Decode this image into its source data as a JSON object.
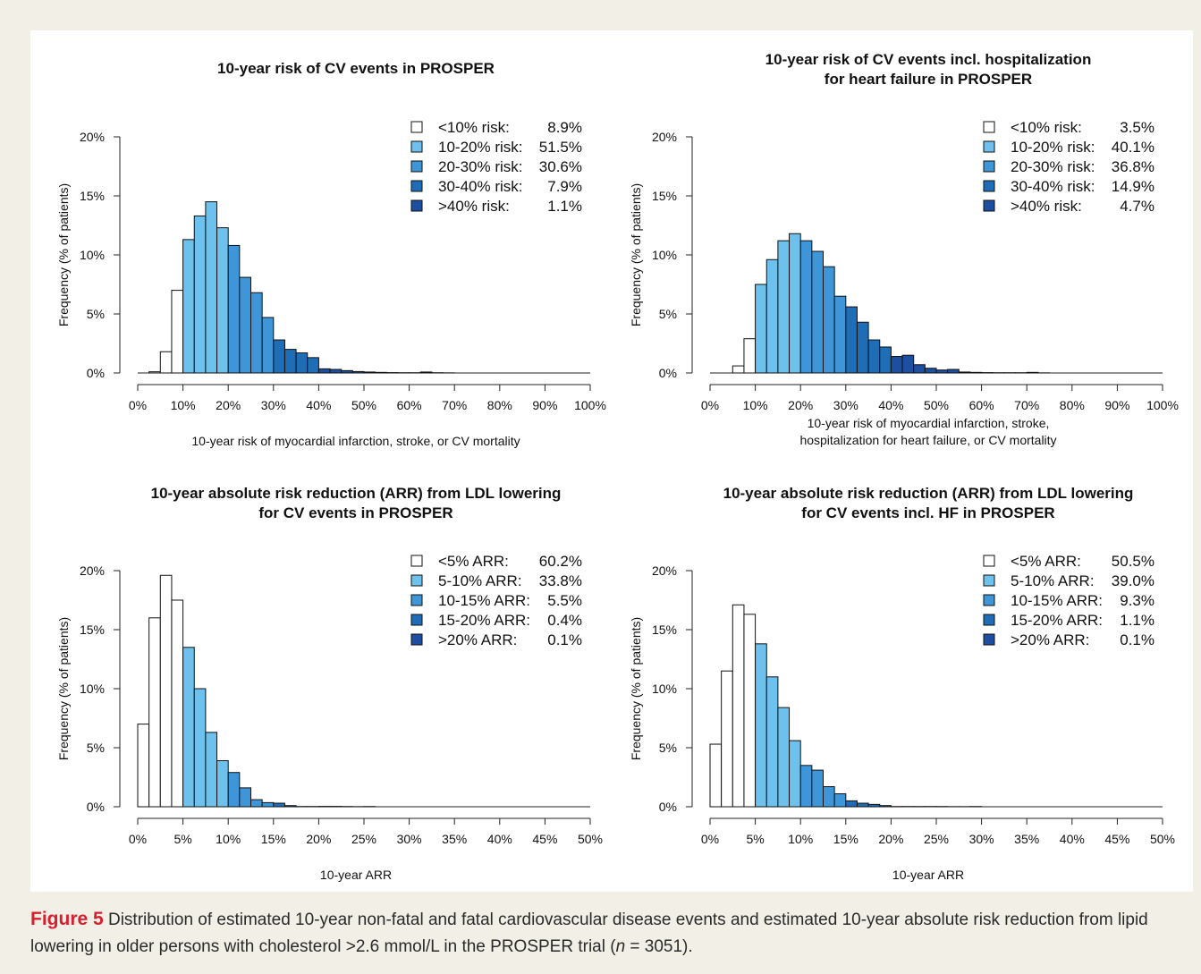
{
  "colors": {
    "white": "#ffffff",
    "light_blue": "#6ec1ec",
    "mid_blue": "#3e96d8",
    "dark_blue": "#1f6db7",
    "navy": "#1c4fa0",
    "caption_label": "#d6202f"
  },
  "caption": {
    "label": "Figure 5",
    "text_before_n": "Distribution of estimated 10-year non-fatal and fatal cardiovascular disease events and estimated 10-year absolute risk reduction from lipid lowering in older persons with cholesterol >2.6 mmol/L in the PROSPER trial (",
    "n_symbol": "n",
    "text_after_n": " = 3051)."
  },
  "chart_data": [
    {
      "type": "bar",
      "title": "10-year risk of CV events in PROSPER",
      "xlabel": "10-year risk of myocardial infarction, stroke, or CV mortality",
      "ylabel": "Frequency (% of patients)",
      "bin_width": 2.5,
      "xlim": [
        0,
        100
      ],
      "ylim": [
        0,
        20
      ],
      "x_ticks": [
        "0%",
        "10%",
        "20%",
        "30%",
        "40%",
        "50%",
        "60%",
        "70%",
        "80%",
        "90%",
        "100%"
      ],
      "y_ticks": [
        "0%",
        "5%",
        "10%",
        "15%",
        "20%"
      ],
      "legend_position": "top-right",
      "legend": [
        {
          "label": "<10% risk:",
          "value": "8.9%"
        },
        {
          "label": "10-20% risk:",
          "value": "51.5%"
        },
        {
          "label": "20-30% risk:",
          "value": "30.6%"
        },
        {
          "label": "30-40% risk:",
          "value": "7.9%"
        },
        {
          "label": ">40% risk:",
          "value": "1.1%"
        }
      ],
      "group_edges": [
        10,
        20,
        30,
        40
      ],
      "values": [
        0,
        0.1,
        1.8,
        7.0,
        11.3,
        13.3,
        14.5,
        12.3,
        10.8,
        8.1,
        6.8,
        4.7,
        2.8,
        2.0,
        1.7,
        1.3,
        0.35,
        0.3,
        0.2,
        0.12,
        0.08,
        0.05,
        0.03,
        0.02,
        0.02,
        0.08,
        0.02,
        0.01
      ]
    },
    {
      "type": "bar",
      "title": "10-year risk of CV events incl. hospitalization for heart failure in PROSPER",
      "title_lines": [
        "10-year risk of CV events incl. hospitalization",
        "for heart failure in PROSPER"
      ],
      "xlabel": "10-year risk of myocardial infarction, stroke, hospitalization for heart failure, or CV mortality",
      "xlabel_lines": [
        "10-year risk of myocardial infarction, stroke,",
        "hospitalization for heart failure, or CV mortality"
      ],
      "ylabel": "Frequency (% of patients)",
      "bin_width": 2.5,
      "xlim": [
        0,
        100
      ],
      "ylim": [
        0,
        20
      ],
      "x_ticks": [
        "0%",
        "10%",
        "20%",
        "30%",
        "40%",
        "50%",
        "60%",
        "70%",
        "80%",
        "90%",
        "100%"
      ],
      "y_ticks": [
        "0%",
        "5%",
        "10%",
        "15%",
        "20%"
      ],
      "legend_position": "top-right",
      "legend": [
        {
          "label": "<10% risk:",
          "value": "3.5%"
        },
        {
          "label": "10-20% risk:",
          "value": "40.1%"
        },
        {
          "label": "20-30% risk:",
          "value": "36.8%"
        },
        {
          "label": "30-40% risk:",
          "value": "14.9%"
        },
        {
          "label": ">40% risk:",
          "value": "4.7%"
        }
      ],
      "group_edges": [
        10,
        20,
        30,
        40
      ],
      "values": [
        0,
        0,
        0.6,
        2.9,
        7.5,
        9.6,
        11.2,
        11.8,
        11.2,
        10.3,
        9.0,
        6.5,
        5.6,
        4.3,
        2.8,
        2.2,
        1.4,
        1.5,
        0.7,
        0.4,
        0.25,
        0.3,
        0.08,
        0.05,
        0.03,
        0.02,
        0.02,
        0.02,
        0.05,
        0.01
      ]
    },
    {
      "type": "bar",
      "title": "10-year absolute risk reduction (ARR) from LDL lowering for CV events in PROSPER",
      "title_lines": [
        "10-year absolute risk reduction (ARR) from LDL lowering",
        "for CV events in PROSPER"
      ],
      "xlabel": "10-year ARR",
      "ylabel": "Frequency (% of patients)",
      "bin_width": 1.25,
      "xlim": [
        0,
        50
      ],
      "ylim": [
        0,
        20
      ],
      "x_ticks": [
        "0%",
        "5%",
        "10%",
        "15%",
        "20%",
        "25%",
        "30%",
        "35%",
        "40%",
        "45%",
        "50%"
      ],
      "y_ticks": [
        "0%",
        "5%",
        "10%",
        "15%",
        "20%"
      ],
      "legend_position": "top-right",
      "legend": [
        {
          "label": "<5% ARR:",
          "value": "60.2%"
        },
        {
          "label": "5-10% ARR:",
          "value": "33.8%"
        },
        {
          "label": "10-15% ARR:",
          "value": "5.5%"
        },
        {
          "label": "15-20% ARR:",
          "value": "0.4%"
        },
        {
          "label": ">20% ARR:",
          "value": "0.1%"
        }
      ],
      "group_edges": [
        5,
        10,
        15,
        20
      ],
      "values": [
        7.0,
        16.0,
        19.6,
        17.5,
        13.5,
        10.0,
        6.3,
        3.9,
        2.9,
        1.6,
        0.6,
        0.35,
        0.3,
        0.1,
        0.02,
        0.02,
        0.03,
        0.03,
        0.02,
        0.01,
        0.02
      ]
    },
    {
      "type": "bar",
      "title": "10-year absolute risk reduction (ARR) from LDL lowering for CV events incl. HF in PROSPER",
      "title_lines": [
        "10-year absolute risk reduction (ARR) from LDL lowering",
        "for CV events incl. HF in PROSPER"
      ],
      "xlabel": "10-year ARR",
      "ylabel": "Frequency (% of patients)",
      "bin_width": 1.25,
      "xlim": [
        0,
        50
      ],
      "ylim": [
        0,
        20
      ],
      "x_ticks": [
        "0%",
        "5%",
        "10%",
        "15%",
        "20%",
        "25%",
        "30%",
        "35%",
        "40%",
        "45%",
        "50%"
      ],
      "y_ticks": [
        "0%",
        "5%",
        "10%",
        "15%",
        "20%"
      ],
      "legend_position": "top-right",
      "legend": [
        {
          "label": "<5% ARR:",
          "value": "50.5%"
        },
        {
          "label": "5-10% ARR:",
          "value": "39.0%"
        },
        {
          "label": "10-15% ARR:",
          "value": "9.3%"
        },
        {
          "label": "15-20% ARR:",
          "value": "1.1%"
        },
        {
          "label": ">20% ARR:",
          "value": "0.1%"
        }
      ],
      "group_edges": [
        5,
        10,
        15,
        20
      ],
      "values": [
        5.3,
        11.5,
        17.1,
        16.3,
        13.8,
        11.0,
        8.4,
        5.6,
        3.5,
        3.1,
        1.7,
        1.1,
        0.5,
        0.3,
        0.2,
        0.1,
        0.02,
        0.02,
        0.02,
        0.02,
        0.02,
        0.01,
        0.01,
        0.02
      ]
    }
  ]
}
